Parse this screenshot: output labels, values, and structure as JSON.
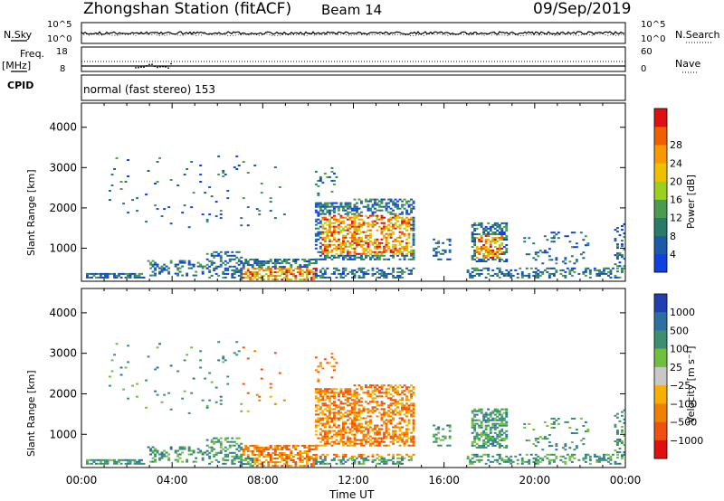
{
  "header": {
    "station": "Zhongshan Station (fitACF)",
    "beam": "Beam 14",
    "date": "09/Sep/2019"
  },
  "status_panels": {
    "nsky_label": "N.Sky",
    "nsky_ticks": [
      "10^5",
      "10^0"
    ],
    "nsearch_label": "N.Search",
    "nsearch_ticks": [
      "10^5",
      "10^0"
    ],
    "freq_label": "Freq.",
    "freq_unit": "[MHz]",
    "freq_ticks": [
      "18",
      "8"
    ],
    "nave_label": "Nave",
    "nave_ticks": [
      "60",
      "0"
    ],
    "cpid_label": "CPID",
    "cpid_text": "normal (fast stereo) 153"
  },
  "chart_data": [
    {
      "type": "heatmap",
      "name": "power",
      "ylabel": "Slant Range [km]",
      "xlabel": "Time UT",
      "x_ticks": [
        "00:00",
        "04:00",
        "08:00",
        "12:00",
        "16:00",
        "20:00",
        "00:00"
      ],
      "y_ticks": [
        1000,
        2000,
        3000,
        4000
      ],
      "ylim": [
        180,
        4600
      ],
      "xlim_hours": [
        0,
        24
      ],
      "colorbar": {
        "label": "Power [dB]",
        "ticks": [
          "4",
          "8",
          "12",
          "16",
          "20",
          "24",
          "28"
        ],
        "colors": [
          "#1040e0",
          "#1a5aa8",
          "#2a7a6a",
          "#4a9a50",
          "#9ad020",
          "#f0c000",
          "#f59a00",
          "#f06000",
          "#e01010"
        ]
      }
    },
    {
      "type": "heatmap",
      "name": "velocity",
      "ylabel": "Slant Range [km]",
      "xlabel": "Time UT",
      "x_ticks": [
        "00:00",
        "04:00",
        "08:00",
        "12:00",
        "16:00",
        "20:00",
        "00:00"
      ],
      "y_ticks": [
        1000,
        2000,
        3000,
        4000
      ],
      "ylim": [
        180,
        4600
      ],
      "xlim_hours": [
        0,
        24
      ],
      "colorbar": {
        "label": "Velocity [m s⁻¹]",
        "ticks": [
          "1000",
          "500",
          "100",
          "25",
          "−25",
          "−100",
          "−500",
          "−1000"
        ],
        "colors": [
          "#2040b0",
          "#2a70a0",
          "#3a9070",
          "#70c040",
          "#c8c8c8",
          "#f8b000",
          "#f08000",
          "#f05010",
          "#e01010"
        ]
      }
    }
  ]
}
